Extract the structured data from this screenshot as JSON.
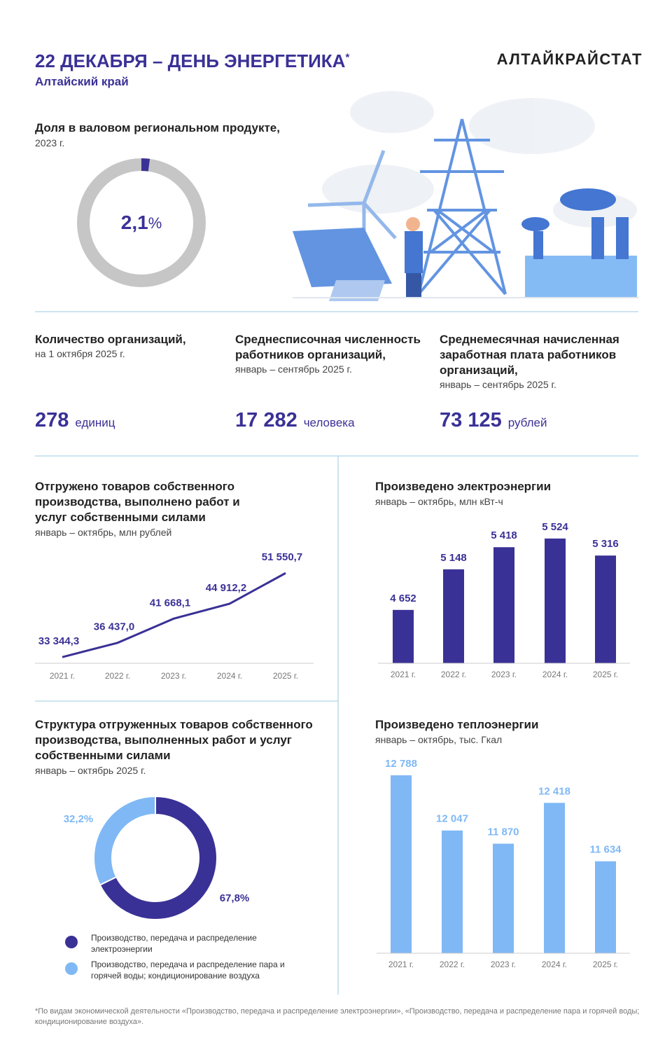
{
  "header": {
    "title": "22 ДЕКАБРЯ – ДЕНЬ ЭНЕРГЕТИКА",
    "title_mark": "*",
    "subtitle": "Алтайский край",
    "brand": "АЛТАЙКРАЙСТАТ"
  },
  "stats": [
    {
      "title": "Количество организаций,",
      "subtitle": "на 1 октября 2025 г.",
      "value": "278",
      "unit": "единиц"
    },
    {
      "title": "Среднесписочная численность работников организаций,",
      "subtitle": "январь – сентябрь 2025 г.",
      "value": "17 282",
      "unit": "человека"
    },
    {
      "title": "Среднемесячная начисленная заработная плата работников организаций,",
      "subtitle": "январь – сентябрь 2025 г.",
      "value": "73 125",
      "unit": "рублей"
    }
  ],
  "chart_data": [
    {
      "type": "donut",
      "title": "Доля в валовом региональном продукте,",
      "subtitle": "2023 г.",
      "values": [
        2.1
      ],
      "value_labels": [
        "2,1"
      ],
      "unit": "%",
      "color": "#3a3196",
      "rest_color": "#c6c6c6"
    },
    {
      "type": "line",
      "title": "Отгружено товаров собственного производства, выполнено работ и услуг собственными силами",
      "subtitle": "январь – октябрь, млн рублей",
      "categories": [
        "2021 г.",
        "2022 г.",
        "2023 г.",
        "2024 г.",
        "2025 г."
      ],
      "values": [
        33344.3,
        36437.0,
        41668.1,
        44912.2,
        51550.7
      ],
      "value_labels": [
        "33 344,3",
        "36 437,0",
        "41 668,1",
        "44 912,2",
        "51 550,7"
      ],
      "color": "#3a3196",
      "ylim": [
        32000,
        52500
      ]
    },
    {
      "type": "bar",
      "title": "Произведено электроэнергии",
      "subtitle": "январь – октябрь, млн кВт-ч",
      "categories": [
        "2021 г.",
        "2022 г.",
        "2023 г.",
        "2024 г.",
        "2025 г."
      ],
      "values": [
        4652,
        5148,
        5418,
        5524,
        5316
      ],
      "value_labels": [
        "4 652",
        "5 148",
        "5 418",
        "5 524",
        "5 316"
      ],
      "color": "#3a3196",
      "label_color": "#3a3196",
      "ylim": [
        4000,
        5600
      ]
    },
    {
      "type": "pie",
      "title": "Структура отгруженных товаров собственного производства, выполненных работ и услуг собственными силами",
      "subtitle": "январь – октябрь 2025 г.",
      "categories": [
        "Производство, передача и распределение электроэнергии",
        "Производство, передача и распределение пара и горячей воды; кондиционирование воздуха"
      ],
      "values": [
        67.8,
        32.2
      ],
      "value_labels": [
        "67,8%",
        "32,2%"
      ],
      "colors": [
        "#3a3196",
        "#7fb8f5"
      ]
    },
    {
      "type": "bar",
      "title": "Произведено теплоэнергии",
      "subtitle": "январь – октябрь, тыс. Гкал",
      "categories": [
        "2021 г.",
        "2022 г.",
        "2023 г.",
        "2024 г.",
        "2025 г."
      ],
      "values": [
        12788,
        12047,
        11870,
        12418,
        11634
      ],
      "value_labels": [
        "12 788",
        "12 047",
        "11 870",
        "12 418",
        "11 634"
      ],
      "color": "#7fb8f5",
      "label_color": "#7fb8f5",
      "ylim": [
        10400,
        12900
      ]
    }
  ],
  "footnote": "*По видам экономической деятельности «Производство, передача и распределение электроэнергии», «Производство, передача и распределение пара и горячей воды; кондиционирование воздуха»."
}
